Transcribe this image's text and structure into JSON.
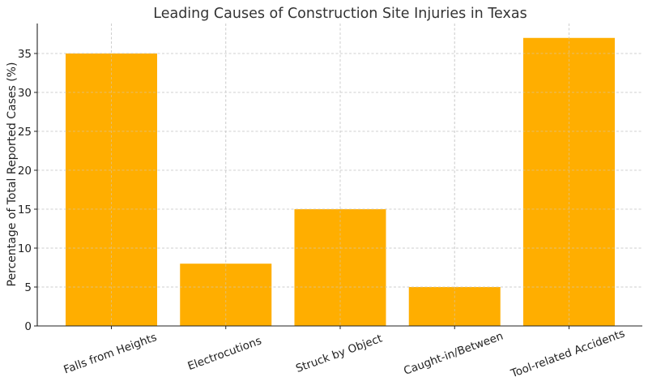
{
  "chart_data": {
    "type": "bar",
    "title": "Leading Causes of Construction Site Injuries in Texas",
    "xlabel": "",
    "ylabel": "Percentage of Total Reported Cases (%)",
    "categories": [
      "Falls from Heights",
      "Electrocutions",
      "Struck by Object",
      "Caught-in/Between",
      "Tool-related Accidents"
    ],
    "values": [
      35,
      8,
      15,
      5,
      37
    ],
    "ylim": [
      0,
      38.85
    ],
    "yticks": [
      0,
      5,
      10,
      15,
      20,
      25,
      30,
      35
    ],
    "grid": true,
    "bar_color": "#FFAE00"
  }
}
